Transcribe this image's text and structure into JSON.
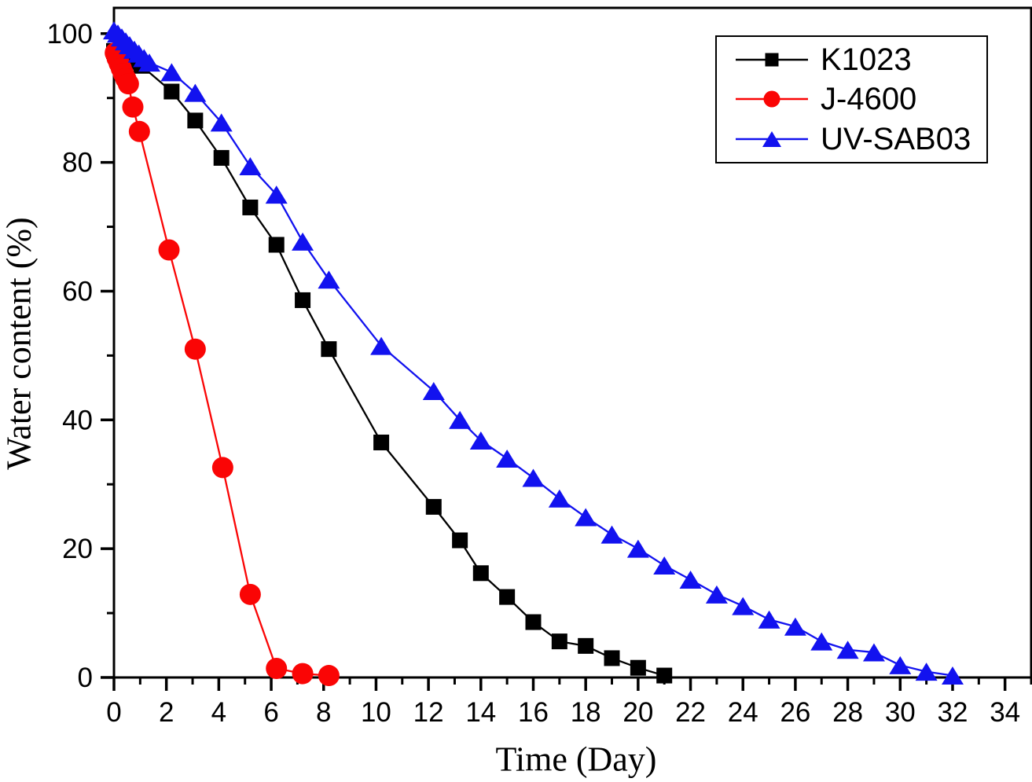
{
  "chart_data": {
    "type": "line",
    "title": "",
    "xlabel": "Time (Day)",
    "ylabel": "Water content (%)",
    "xlim": [
      0,
      35
    ],
    "ylim": [
      0,
      104
    ],
    "grid": "off",
    "legend_position": "top-right",
    "x_major_ticks": [
      0,
      2,
      4,
      6,
      8,
      10,
      12,
      14,
      16,
      18,
      20,
      22,
      24,
      26,
      28,
      30,
      32,
      34
    ],
    "x_minor_ticks": [
      1,
      3,
      5,
      7,
      9,
      11,
      13,
      15,
      17,
      19,
      21,
      23,
      25,
      27,
      29,
      31,
      33,
      35
    ],
    "y_major_ticks": [
      0,
      20,
      40,
      60,
      80,
      100
    ],
    "y_minor_ticks": [
      10,
      30,
      50,
      70,
      90
    ],
    "series": [
      {
        "name": "K1023",
        "color": "#000000",
        "marker": "square",
        "x": [
          0,
          0.2,
          0.4,
          0.6,
          0.8,
          1.05,
          2.2,
          3.1,
          4.1,
          5.2,
          6.2,
          7.2,
          8.2,
          10.2,
          12.2,
          13.2,
          14,
          15,
          16,
          17,
          18,
          19,
          20,
          21
        ],
        "y": [
          97.3,
          96.9,
          96.5,
          96.1,
          95.6,
          95,
          91,
          86.5,
          80.7,
          73,
          67.2,
          58.6,
          51,
          36.5,
          26.5,
          21.3,
          16.2,
          12.5,
          8.6,
          5.6,
          4.9,
          3,
          1.5,
          0.3
        ]
      },
      {
        "name": "J-4600",
        "color": "#fa0505",
        "marker": "circle",
        "x": [
          0.05,
          0.12,
          0.2,
          0.28,
          0.36,
          0.45,
          0.55,
          0.72,
          0.97,
          2.1,
          3.1,
          4.15,
          5.2,
          6.2,
          7.2,
          8.2
        ],
        "y": [
          97,
          96.2,
          95.4,
          94.6,
          93.8,
          93,
          92.2,
          88.6,
          84.8,
          66.4,
          51,
          32.6,
          12.9,
          1.4,
          0.6,
          0.3
        ]
      },
      {
        "name": "UV-SAB03",
        "color": "#1212ef",
        "marker": "triangle",
        "x": [
          0,
          0.15,
          0.3,
          0.45,
          0.6,
          0.78,
          0.95,
          1.15,
          1.35,
          2.2,
          3.1,
          4.1,
          5.2,
          6.2,
          7.2,
          8.2,
          10.2,
          12.2,
          13.2,
          14,
          15,
          16,
          17,
          18,
          19,
          20,
          21,
          22,
          23,
          24,
          25,
          26,
          27,
          28,
          29,
          30,
          31,
          32
        ],
        "y": [
          100.5,
          100,
          99.4,
          98.8,
          98.2,
          97.5,
          96.9,
          96.2,
          95.5,
          94,
          90.8,
          86.2,
          79.4,
          75,
          67.7,
          61.8,
          51.5,
          44.5,
          40,
          36.8,
          34,
          31,
          27.8,
          24.9,
          22.2,
          20,
          17.4,
          15.2,
          12.9,
          11.1,
          9,
          7.9,
          5.6,
          4.3,
          3.9,
          1.9,
          0.9,
          0.3
        ]
      }
    ]
  }
}
